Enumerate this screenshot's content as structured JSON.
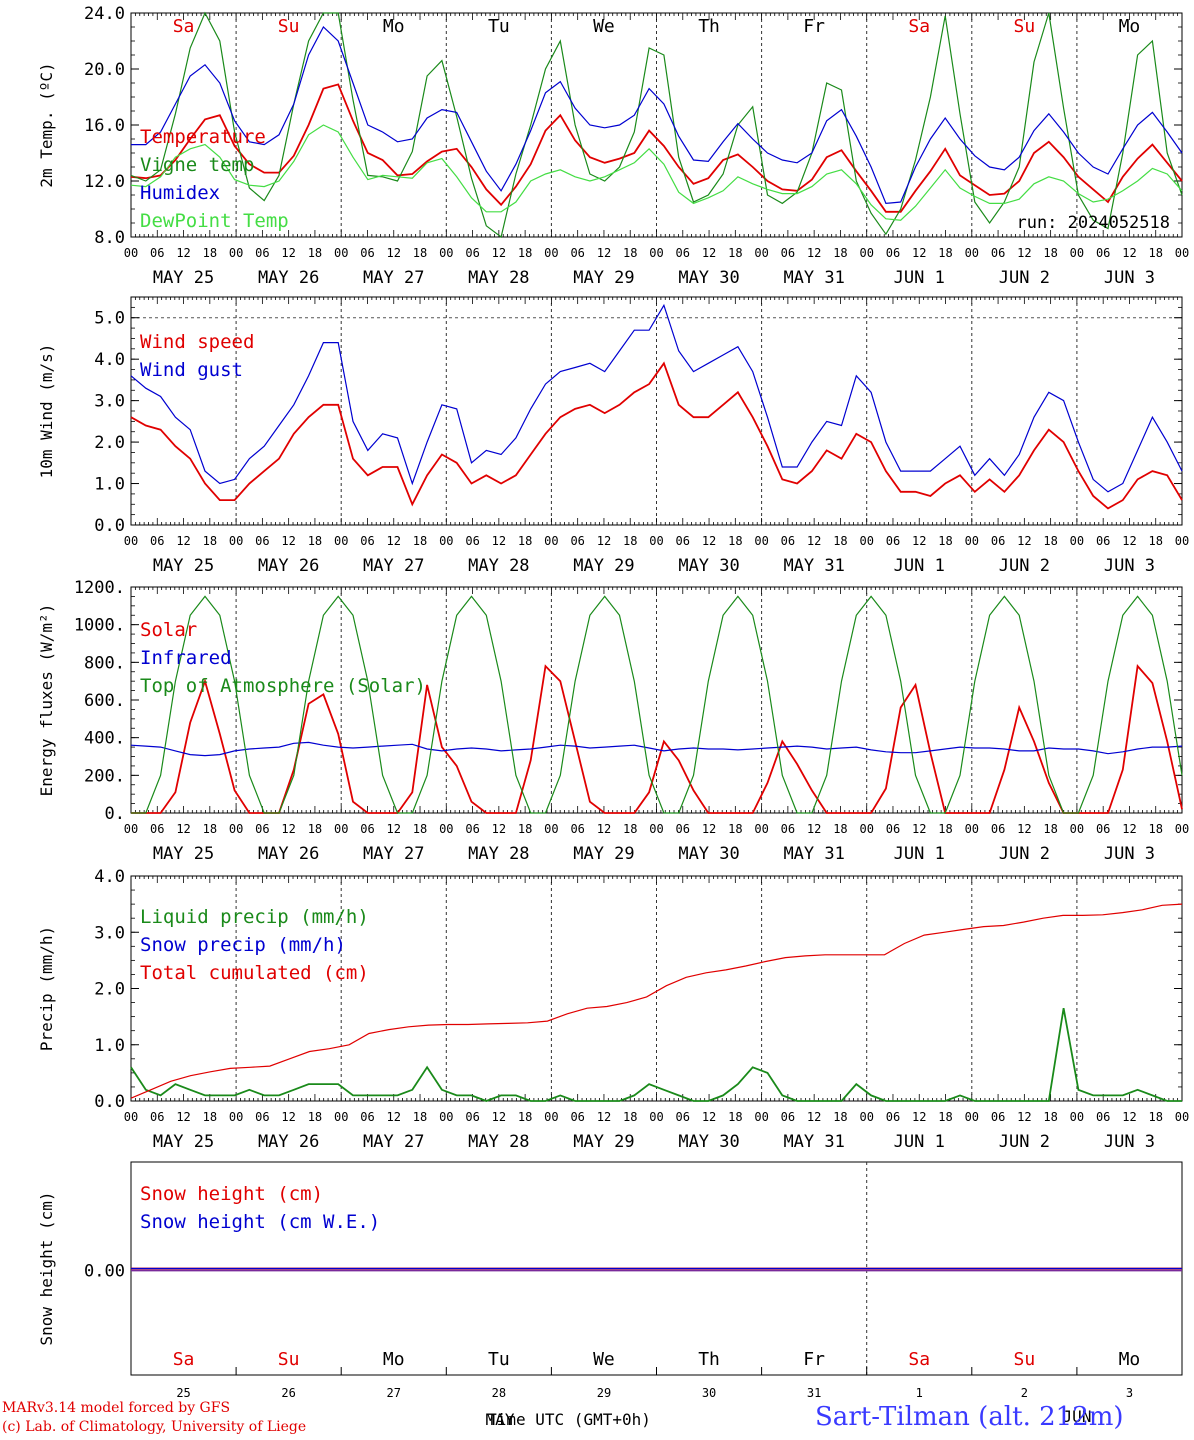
{
  "chart_data": [
    {
      "type": "line",
      "ylabel": "2m Temp. (ºC)",
      "ylim": [
        8.0,
        24.0
      ],
      "yticks": [
        "8.0",
        "12.0",
        "16.0",
        "20.0",
        "24.0"
      ],
      "annotation": "run: 2024052518",
      "day_of_week": [
        {
          "label": "Sa",
          "color": "#e00000"
        },
        {
          "label": "Su",
          "color": "#e00000"
        },
        {
          "label": "Mo",
          "color": "#000000"
        },
        {
          "label": "Tu",
          "color": "#000000"
        },
        {
          "label": "We",
          "color": "#000000"
        },
        {
          "label": "Th",
          "color": "#000000"
        },
        {
          "label": "Fr",
          "color": "#000000"
        },
        {
          "label": "Sa",
          "color": "#e00000"
        },
        {
          "label": "Su",
          "color": "#e00000"
        },
        {
          "label": "Mo",
          "color": "#000000"
        }
      ],
      "series": [
        {
          "name": "Temperature",
          "color": "#e00000",
          "values": [
            12.3,
            12.2,
            12.4,
            13.5,
            15.0,
            16.4,
            16.7,
            14.5,
            13.2,
            12.6,
            12.6,
            13.8,
            16.0,
            18.6,
            18.9,
            16.3,
            14.0,
            13.5,
            12.4,
            12.5,
            13.4,
            14.1,
            14.3,
            13.0,
            11.4,
            10.3,
            11.6,
            13.2,
            15.6,
            16.7,
            14.9,
            13.7,
            13.3,
            13.6,
            14.0,
            15.6,
            14.5,
            13.0,
            11.8,
            12.2,
            13.5,
            13.9,
            13.0,
            12.0,
            11.4,
            11.3,
            12.1,
            13.7,
            14.2,
            12.7,
            11.3,
            9.8,
            9.8,
            11.3,
            12.7,
            14.3,
            12.4,
            11.7,
            11.0,
            11.1,
            12.0,
            14.0,
            14.8,
            13.7,
            12.3,
            11.4,
            10.5,
            12.3,
            13.6,
            14.6,
            13.3,
            12.0
          ]
        },
        {
          "name": "Vigne temp",
          "color": "#1a8a1a",
          "values": [
            12.4,
            12.0,
            12.8,
            16.8,
            21.5,
            24.2,
            22.0,
            15.5,
            11.5,
            10.6,
            12.4,
            17.5,
            22.0,
            24.6,
            24.0,
            17.8,
            12.4,
            12.3,
            12.0,
            14.1,
            19.5,
            20.6,
            16.6,
            12.2,
            8.8,
            8.0,
            12.5,
            16.0,
            20.0,
            22.0,
            16.0,
            12.5,
            12.0,
            13.0,
            15.5,
            21.5,
            21.0,
            13.7,
            10.5,
            11.0,
            12.5,
            16.0,
            17.3,
            11.0,
            10.4,
            11.2,
            14.0,
            19.0,
            18.5,
            12.0,
            9.7,
            8.2,
            10.0,
            13.5,
            18.0,
            23.8,
            16.8,
            10.5,
            9.0,
            10.5,
            13.0,
            20.5,
            24.3,
            17.2,
            11.0,
            9.2,
            8.6,
            14.0,
            21.0,
            22.0,
            14.0,
            11.0
          ]
        },
        {
          "name": "Humidex",
          "color": "#0000d0",
          "values": [
            14.6,
            14.6,
            15.5,
            17.5,
            19.5,
            20.3,
            19.0,
            16.3,
            14.8,
            14.6,
            15.3,
            17.5,
            21.0,
            23.0,
            22.0,
            19.0,
            16.0,
            15.5,
            14.8,
            15.0,
            16.5,
            17.1,
            16.9,
            14.8,
            12.7,
            11.3,
            13.2,
            15.6,
            18.3,
            19.1,
            17.2,
            16.0,
            15.8,
            16.0,
            16.7,
            18.6,
            17.5,
            15.2,
            13.5,
            13.4,
            14.8,
            16.1,
            15.0,
            14.0,
            13.5,
            13.3,
            14.0,
            16.3,
            17.1,
            15.2,
            13.0,
            10.4,
            10.5,
            13.0,
            15.0,
            16.5,
            15.0,
            13.8,
            13.0,
            12.8,
            13.7,
            15.6,
            16.8,
            15.5,
            14.0,
            13.0,
            12.5,
            14.3,
            16.0,
            16.9,
            15.5,
            14.0
          ]
        },
        {
          "name": "DewPoint Temp",
          "color": "#44dd44",
          "values": [
            11.7,
            11.6,
            12.3,
            13.7,
            14.3,
            14.6,
            13.7,
            12.1,
            11.7,
            11.6,
            12.0,
            13.4,
            15.3,
            16.0,
            15.5,
            13.7,
            12.1,
            12.4,
            12.3,
            12.2,
            13.3,
            13.6,
            12.3,
            10.8,
            9.8,
            9.8,
            10.5,
            12.0,
            12.5,
            12.8,
            12.3,
            12.0,
            12.3,
            12.8,
            13.3,
            14.3,
            13.2,
            11.2,
            10.4,
            10.8,
            11.3,
            12.3,
            11.8,
            11.4,
            11.1,
            11.1,
            11.6,
            12.5,
            12.8,
            11.8,
            10.3,
            9.3,
            9.2,
            10.2,
            11.5,
            12.8,
            11.5,
            10.9,
            10.4,
            10.4,
            10.7,
            11.8,
            12.3,
            12.0,
            11.1,
            10.5,
            10.7,
            11.3,
            12.0,
            12.9,
            12.5,
            11.3
          ]
        }
      ]
    },
    {
      "type": "line",
      "ylabel": "10m Wind (m/s)",
      "ylim": [
        0.0,
        5.5
      ],
      "yticks": [
        "0.0",
        "1.0",
        "2.0",
        "3.0",
        "4.0",
        "5.0"
      ],
      "series": [
        {
          "name": "Wind speed",
          "color": "#e00000",
          "values": [
            2.6,
            2.4,
            2.3,
            1.9,
            1.6,
            1.0,
            0.6,
            0.6,
            1.0,
            1.3,
            1.6,
            2.2,
            2.6,
            2.9,
            2.9,
            1.6,
            1.2,
            1.4,
            1.4,
            0.5,
            1.2,
            1.7,
            1.5,
            1.0,
            1.2,
            1.0,
            1.2,
            1.7,
            2.2,
            2.6,
            2.8,
            2.9,
            2.7,
            2.9,
            3.2,
            3.4,
            3.9,
            2.9,
            2.6,
            2.6,
            2.9,
            3.2,
            2.6,
            1.9,
            1.1,
            1.0,
            1.3,
            1.8,
            1.6,
            2.2,
            2.0,
            1.3,
            0.8,
            0.8,
            0.7,
            1.0,
            1.2,
            0.8,
            1.1,
            0.8,
            1.2,
            1.8,
            2.3,
            2.0,
            1.3,
            0.7,
            0.4,
            0.6,
            1.1,
            1.3,
            1.2,
            0.6
          ]
        },
        {
          "name": "Wind gust",
          "color": "#0000d0",
          "values": [
            3.6,
            3.3,
            3.1,
            2.6,
            2.3,
            1.3,
            1.0,
            1.1,
            1.6,
            1.9,
            2.4,
            2.9,
            3.6,
            4.4,
            4.4,
            2.5,
            1.8,
            2.2,
            2.1,
            1.0,
            2.0,
            2.9,
            2.8,
            1.5,
            1.8,
            1.7,
            2.1,
            2.8,
            3.4,
            3.7,
            3.8,
            3.9,
            3.7,
            4.2,
            4.7,
            4.7,
            5.3,
            4.2,
            3.7,
            3.9,
            4.1,
            4.3,
            3.7,
            2.6,
            1.4,
            1.4,
            2.0,
            2.5,
            2.4,
            3.6,
            3.2,
            2.0,
            1.3,
            1.3,
            1.3,
            1.6,
            1.9,
            1.2,
            1.6,
            1.2,
            1.7,
            2.6,
            3.2,
            3.0,
            2.0,
            1.1,
            0.8,
            1.0,
            1.8,
            2.6,
            2.0,
            1.3
          ]
        }
      ]
    },
    {
      "type": "line",
      "ylabel": "Energy fluxes (W/m²)",
      "ylim": [
        0,
        1200
      ],
      "yticks": [
        "0.",
        "200.",
        "400.",
        "600.",
        "800.",
        "1000.",
        "1200."
      ],
      "series": [
        {
          "name": "Solar",
          "color": "#e00000",
          "values": [
            0,
            0,
            0,
            110,
            480,
            700,
            420,
            120,
            0,
            0,
            0,
            230,
            580,
            630,
            420,
            60,
            0,
            0,
            0,
            110,
            680,
            350,
            250,
            60,
            0,
            0,
            0,
            280,
            780,
            700,
            380,
            60,
            0,
            0,
            0,
            110,
            380,
            280,
            120,
            0,
            0,
            0,
            0,
            160,
            380,
            260,
            120,
            0,
            0,
            0,
            0,
            130,
            560,
            680,
            320,
            0,
            0,
            0,
            0,
            230,
            560,
            380,
            160,
            0,
            0,
            0,
            0,
            230,
            780,
            690,
            380,
            20
          ]
        },
        {
          "name": "Infrared",
          "color": "#0000d0",
          "values": [
            360,
            355,
            350,
            330,
            310,
            305,
            310,
            330,
            340,
            345,
            350,
            370,
            375,
            360,
            350,
            345,
            350,
            355,
            360,
            365,
            340,
            330,
            340,
            345,
            340,
            330,
            335,
            340,
            350,
            360,
            355,
            345,
            350,
            355,
            360,
            345,
            330,
            340,
            345,
            340,
            340,
            335,
            340,
            345,
            350,
            355,
            350,
            340,
            345,
            350,
            335,
            325,
            320,
            320,
            330,
            340,
            350,
            345,
            345,
            340,
            330,
            330,
            345,
            340,
            340,
            330,
            315,
            325,
            340,
            350,
            350,
            355
          ]
        },
        {
          "name": "Top of Atmosphere (Solar)",
          "color": "#1a8a1a",
          "values": [
            0,
            0,
            200,
            700,
            1050,
            1150,
            1050,
            700,
            200,
            0,
            0,
            200,
            700,
            1050,
            1150,
            1050,
            700,
            200,
            0,
            0,
            200,
            700,
            1050,
            1150,
            1050,
            700,
            200,
            0,
            0,
            200,
            700,
            1050,
            1150,
            1050,
            700,
            200,
            0,
            0,
            200,
            700,
            1050,
            1150,
            1050,
            700,
            200,
            0,
            0,
            200,
            700,
            1050,
            1150,
            1050,
            700,
            200,
            0,
            0,
            200,
            700,
            1050,
            1150,
            1050,
            700,
            200,
            0,
            0,
            200,
            700,
            1050,
            1150,
            1050,
            700,
            200
          ]
        }
      ]
    },
    {
      "type": "line",
      "ylabel": "Precip (mm/h)",
      "ylim": [
        0.0,
        4.0
      ],
      "yticks": [
        "0.0",
        "1.0",
        "2.0",
        "3.0",
        "4.0"
      ],
      "series": [
        {
          "name": "Liquid precip (mm/h)",
          "color": "#1a8a1a",
          "values": [
            0.6,
            0.2,
            0.1,
            0.3,
            0.2,
            0.1,
            0.1,
            0.1,
            0.2,
            0.1,
            0.1,
            0.2,
            0.3,
            0.3,
            0.3,
            0.1,
            0.1,
            0.1,
            0.1,
            0.2,
            0.6,
            0.2,
            0.1,
            0.1,
            0.0,
            0.1,
            0.1,
            0.0,
            0.0,
            0.1,
            0.0,
            0.0,
            0.0,
            0.0,
            0.1,
            0.3,
            0.2,
            0.1,
            0.0,
            0.0,
            0.1,
            0.3,
            0.6,
            0.5,
            0.1,
            0.0,
            0.0,
            0.0,
            0.0,
            0.3,
            0.1,
            0.0,
            0.0,
            0.0,
            0.0,
            0.0,
            0.1,
            0.0,
            0.0,
            0.0,
            0.0,
            0.0,
            0.0,
            1.65,
            0.2,
            0.1,
            0.1,
            0.1,
            0.2,
            0.1,
            0.0,
            0.0
          ]
        },
        {
          "name": "Snow precip (mm/h)",
          "color": "#0000d0",
          "values": []
        },
        {
          "name": "Total cumulated (cm)",
          "color": "#e00000",
          "values": [
            0.05,
            0.2,
            0.35,
            0.45,
            0.52,
            0.58,
            0.6,
            0.62,
            0.75,
            0.88,
            0.93,
            1.0,
            1.2,
            1.27,
            1.32,
            1.35,
            1.36,
            1.36,
            1.37,
            1.38,
            1.39,
            1.42,
            1.55,
            1.65,
            1.68,
            1.75,
            1.85,
            2.05,
            2.2,
            2.28,
            2.33,
            2.4,
            2.48,
            2.55,
            2.58,
            2.6,
            2.6,
            2.6,
            2.6,
            2.8,
            2.95,
            3.0,
            3.05,
            3.1,
            3.12,
            3.18,
            3.25,
            3.3,
            3.3,
            3.31,
            3.35,
            3.4,
            3.48,
            3.5
          ]
        }
      ]
    },
    {
      "type": "line",
      "ylabel": "Snow height (cm)",
      "yticks": [
        "0.00"
      ],
      "series": [
        {
          "name": "Snow height (cm)",
          "color": "#e00000",
          "values": [
            0,
            0
          ]
        },
        {
          "name": "Snow height (cm W.E.)",
          "color": "#0000d0",
          "values": [
            0,
            0
          ]
        }
      ],
      "day_of_week": [
        {
          "label": "Sa",
          "color": "#e00000"
        },
        {
          "label": "Su",
          "color": "#e00000"
        },
        {
          "label": "Mo",
          "color": "#000000"
        },
        {
          "label": "Tu",
          "color": "#000000"
        },
        {
          "label": "We",
          "color": "#000000"
        },
        {
          "label": "Th",
          "color": "#000000"
        },
        {
          "label": "Fr",
          "color": "#000000"
        },
        {
          "label": "Sa",
          "color": "#e00000"
        },
        {
          "label": "Su",
          "color": "#e00000"
        },
        {
          "label": "Mo",
          "color": "#000000"
        }
      ],
      "day_numbers": [
        "25",
        "26",
        "27",
        "28",
        "29",
        "30",
        "31",
        "1",
        "2",
        "3"
      ],
      "xlabel": "Time UTC (GMT+0h)",
      "month_labels": [
        "MAY",
        "JUN"
      ]
    }
  ],
  "x_axis": {
    "hour_ticks": [
      "00",
      "06",
      "12",
      "18"
    ],
    "end_tick": "00",
    "dates": [
      "MAY 25",
      "MAY 26",
      "MAY 27",
      "MAY 28",
      "MAY 29",
      "MAY 30",
      "MAY 31",
      "JUN  1",
      "JUN  2",
      "JUN  3"
    ]
  },
  "footer": {
    "model": "MARv3.14 model forced by GFS",
    "credit": "(c) Lab. of Climatology, University of Liege",
    "station": "Sart-Tilman (alt. 212m)"
  }
}
